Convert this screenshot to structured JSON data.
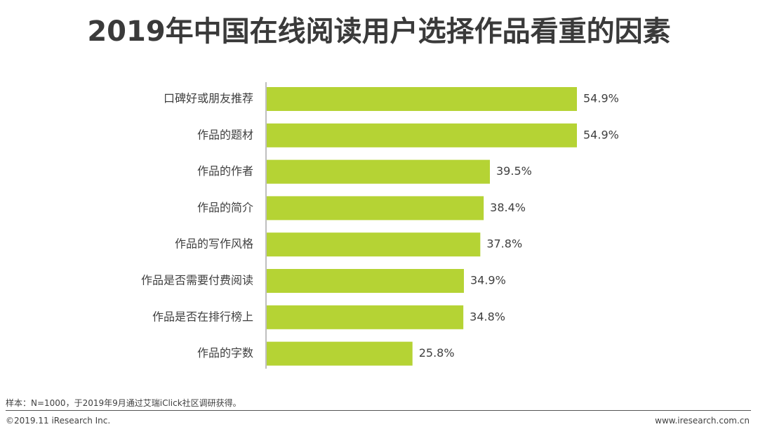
{
  "title": "2019年中国在线阅读用户选择作品看重的因素",
  "chart_data": {
    "type": "bar",
    "orientation": "horizontal",
    "categories": [
      "口碑好或朋友推荐",
      "作品的题材",
      "作品的作者",
      "作品的简介",
      "作品的写作风格",
      "作品是否需要付费阅读",
      "作品是否在排行榜上",
      "作品的字数"
    ],
    "values": [
      54.9,
      54.9,
      39.5,
      38.4,
      37.8,
      34.9,
      34.8,
      25.8
    ],
    "value_labels": [
      "54.9%",
      "54.9%",
      "39.5%",
      "38.4%",
      "37.8%",
      "34.9%",
      "34.8%",
      "25.8%"
    ],
    "unit": "%",
    "bar_color": "#b5d334",
    "axis_color": "#7f7f7f",
    "xlim": [
      0,
      60
    ],
    "grid": false,
    "legend": "none"
  },
  "footer": {
    "note": "样本：N=1000，于2019年9月通过艾瑞iClick社区调研获得。",
    "copyright": "©2019.11 iResearch Inc.",
    "url": "www.iresearch.com.cn"
  }
}
